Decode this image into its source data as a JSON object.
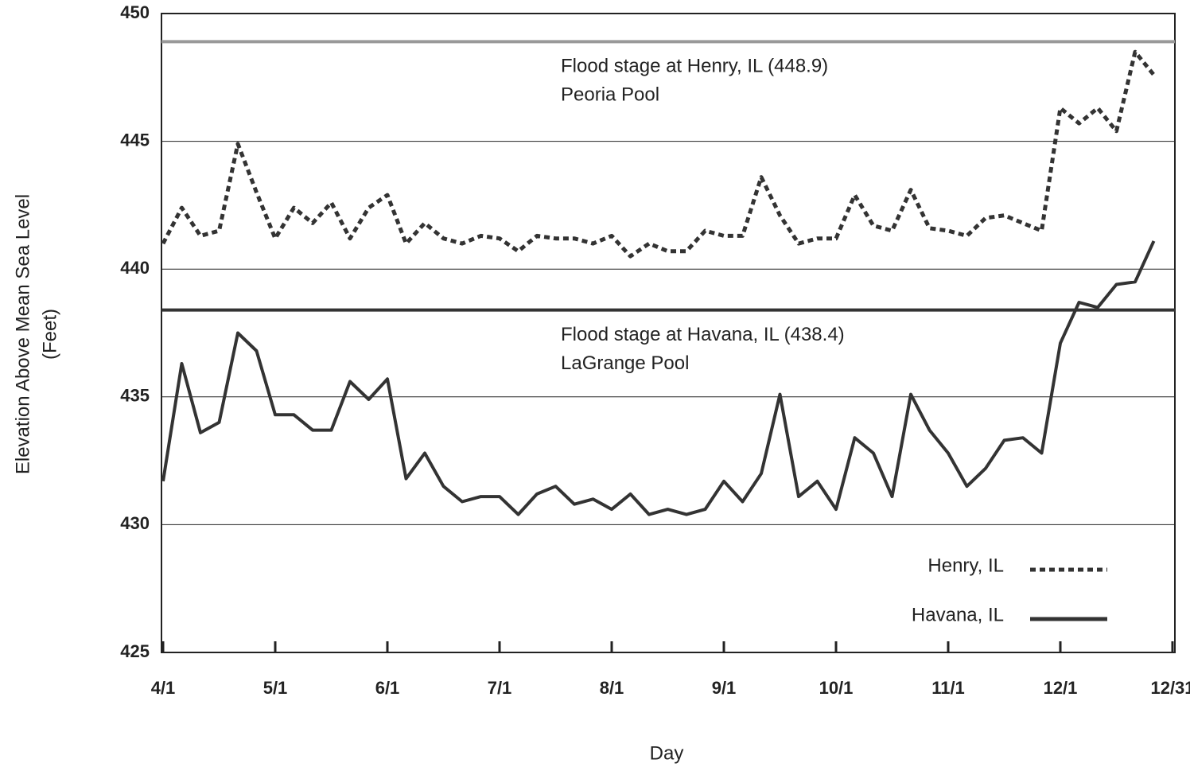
{
  "chart_data": {
    "type": "line",
    "xlabel": "Day",
    "ylabel": [
      "Elevation Above Mean Sea Level",
      "(Feet)"
    ],
    "categories": [
      "4/1",
      null,
      null,
      null,
      null,
      null,
      "5/1",
      null,
      null,
      null,
      null,
      null,
      "6/1",
      null,
      null,
      null,
      null,
      null,
      "7/1",
      null,
      null,
      null,
      null,
      null,
      "8/1",
      null,
      null,
      null,
      null,
      null,
      "9/1",
      null,
      null,
      null,
      null,
      null,
      "10/1",
      null,
      null,
      null,
      null,
      null,
      "11/1",
      null,
      null,
      null,
      null,
      null,
      "12/1",
      null,
      null,
      null,
      null,
      null,
      "12/31"
    ],
    "series": [
      {
        "name": "Henry, IL",
        "color": "#333333",
        "line_style": "dotted",
        "values": [
          441.0,
          442.4,
          441.3,
          441.5,
          444.9,
          443.0,
          441.2,
          442.4,
          441.8,
          442.6,
          441.2,
          442.4,
          442.9,
          441.0,
          441.8,
          441.2,
          441.0,
          441.3,
          441.2,
          440.7,
          441.3,
          441.2,
          441.2,
          441.0,
          441.3,
          440.5,
          441.0,
          440.7,
          440.7,
          441.5,
          441.3,
          441.3,
          443.6,
          442.1,
          441.0,
          441.2,
          441.2,
          442.9,
          441.7,
          441.5,
          443.1,
          441.6,
          441.5,
          441.3,
          442.0,
          442.1,
          441.8,
          441.5,
          446.3,
          445.7,
          446.3,
          445.4,
          448.5,
          447.6,
          null
        ]
      },
      {
        "name": "Havana, IL",
        "color": "#333333",
        "line_style": "solid",
        "values": [
          431.7,
          436.3,
          433.6,
          434.0,
          437.5,
          436.8,
          434.3,
          434.3,
          433.7,
          433.7,
          435.6,
          434.9,
          435.7,
          431.8,
          432.8,
          431.5,
          430.9,
          431.1,
          431.1,
          430.4,
          431.2,
          431.5,
          430.8,
          431.0,
          430.6,
          431.2,
          430.4,
          430.6,
          430.4,
          430.6,
          431.7,
          430.9,
          432.0,
          435.1,
          431.1,
          431.7,
          430.6,
          433.4,
          432.8,
          431.1,
          435.1,
          433.7,
          432.8,
          431.5,
          432.2,
          433.3,
          433.4,
          432.8,
          437.1,
          438.7,
          438.5,
          439.4,
          439.5,
          441.1,
          null
        ]
      }
    ],
    "reference_lines": [
      {
        "value": 448.9,
        "color": "#999999",
        "label": "Flood stage at Henry, IL (448.9)",
        "sublabel": "Peoria Pool"
      },
      {
        "value": 438.4,
        "color": "#333333",
        "label": "Flood stage at Havana, IL (438.4)",
        "sublabel": "LaGrange Pool"
      }
    ],
    "ylim": [
      425,
      450
    ],
    "yticks": [
      425,
      430,
      435,
      440,
      445,
      450
    ],
    "grid": true,
    "legend": "lower right"
  }
}
